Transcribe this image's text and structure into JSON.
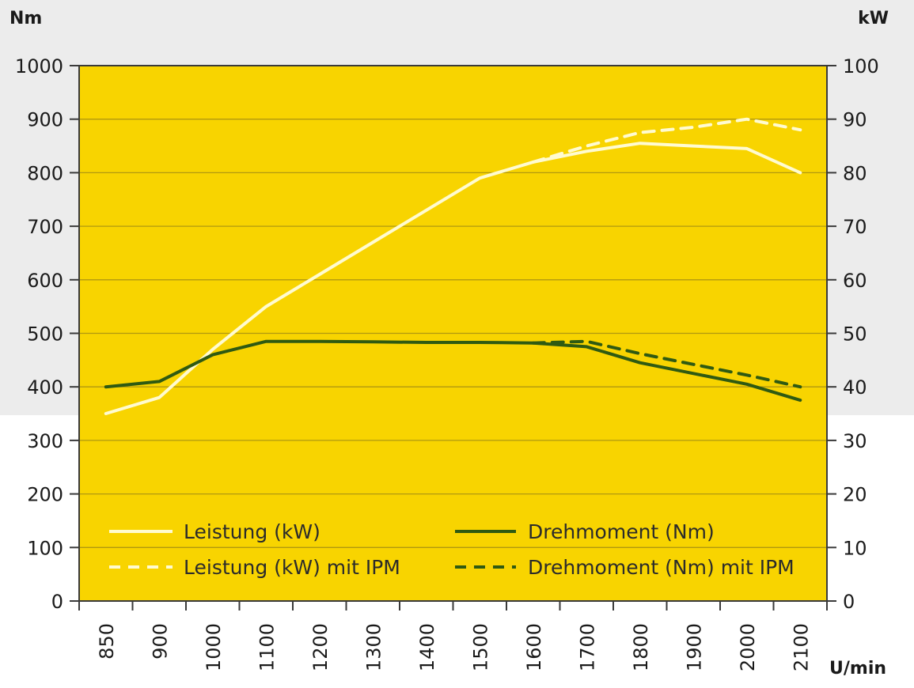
{
  "chart_data": {
    "type": "line",
    "title": "",
    "xlabel": "U/min",
    "ylabel_left": "Nm",
    "ylabel_right": "kW",
    "x": [
      850,
      900,
      1000,
      1100,
      1200,
      1300,
      1400,
      1500,
      1600,
      1700,
      1800,
      1900,
      2000,
      2100
    ],
    "x_tick_labels": [
      "850",
      "900",
      "1000",
      "1100",
      "1200",
      "1300",
      "1400",
      "1500",
      "1600",
      "1700",
      "1800",
      "1900",
      "2000",
      "2100"
    ],
    "ylim_left": [
      0,
      1000
    ],
    "ylim_right": [
      0,
      100
    ],
    "y_left_ticks": [
      "0",
      "100",
      "200",
      "300",
      "400",
      "500",
      "600",
      "700",
      "800",
      "900",
      "1000"
    ],
    "y_right_ticks": [
      "0",
      "10",
      "20",
      "30",
      "40",
      "50",
      "60",
      "70",
      "80",
      "90",
      "100"
    ],
    "grid": true,
    "background_color": "#f8d400",
    "series": [
      {
        "name": "Leistung (kW)",
        "axis": "right",
        "style": "solid",
        "color": "#fffbd0",
        "x": [
          850,
          900,
          1000,
          1100,
          1200,
          1300,
          1400,
          1500,
          1600,
          1700,
          1800,
          1900,
          2000,
          2100
        ],
        "values": [
          35,
          38,
          47,
          55,
          61,
          67,
          73,
          79,
          82,
          84,
          85.5,
          85,
          84.5,
          80
        ]
      },
      {
        "name": "Leistung (kW) mit IPM",
        "axis": "right",
        "style": "dashed",
        "color": "#fffbd0",
        "x": [
          1600,
          1700,
          1800,
          1900,
          2000,
          2100
        ],
        "values": [
          82,
          85,
          87.5,
          88.5,
          90,
          88
        ]
      },
      {
        "name": "Drehmoment (Nm)",
        "axis": "left",
        "style": "solid",
        "color": "#2f5a12",
        "x": [
          850,
          900,
          1000,
          1100,
          1200,
          1300,
          1400,
          1500,
          1600,
          1700,
          1800,
          1900,
          2000,
          2100
        ],
        "values": [
          400,
          410,
          460,
          485,
          485,
          484,
          483,
          483,
          482,
          475,
          445,
          425,
          405,
          375
        ]
      },
      {
        "name": "Drehmoment (Nm) mit IPM",
        "axis": "left",
        "style": "dashed",
        "color": "#2f5a12",
        "x": [
          1600,
          1700,
          1800,
          1900,
          2000,
          2100
        ],
        "values": [
          482,
          485,
          462,
          442,
          422,
          400
        ]
      }
    ],
    "legend": {
      "position": "bottom-inside",
      "entries": [
        {
          "label": "Leistung (kW)",
          "series": 0
        },
        {
          "label": "Drehmoment (Nm)",
          "series": 2
        },
        {
          "label": "Leistung (kW) mit IPM",
          "series": 1
        },
        {
          "label": "Drehmoment (Nm) mit IPM",
          "series": 3
        }
      ]
    }
  }
}
